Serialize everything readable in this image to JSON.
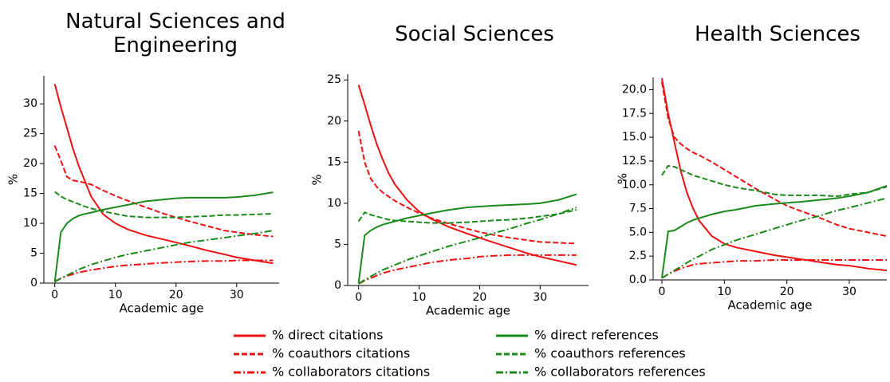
{
  "chart_data": [
    {
      "type": "line",
      "title": "Natural Sciences and Engineering",
      "xlabel": "Academic age",
      "ylabel": "%",
      "x": [
        0,
        1,
        2,
        3,
        4,
        5,
        6,
        8,
        10,
        12,
        15,
        18,
        20,
        22,
        25,
        28,
        30,
        33,
        36
      ],
      "xlim": [
        -1.8,
        37
      ],
      "xticks": [
        0,
        10,
        20,
        30
      ],
      "ylim": [
        0,
        34.7
      ],
      "yticks": [
        0,
        5,
        10,
        15,
        20,
        25,
        30
      ],
      "series": [
        {
          "name": "% direct citations",
          "color": "#ee1111",
          "dash": "solid",
          "values": [
            33.3,
            29.5,
            26,
            22.5,
            19.5,
            17,
            14.5,
            11.5,
            10,
            9,
            8,
            7.3,
            6.8,
            6.3,
            5.5,
            4.8,
            4.3,
            3.8,
            3.3
          ]
        },
        {
          "name": "% coauthors citations",
          "color": "#ee1111",
          "dash": "dashed",
          "values": [
            23,
            20.5,
            17.8,
            17.2,
            17,
            16.8,
            16.5,
            15.5,
            14.6,
            13.8,
            12.7,
            11.6,
            11,
            10.4,
            9.6,
            8.8,
            8.5,
            8.1,
            7.8
          ]
        },
        {
          "name": "% collaborators citations",
          "color": "#ee1111",
          "dash": "dashdot",
          "values": [
            0.3,
            0.8,
            1.2,
            1.5,
            1.8,
            2.0,
            2.2,
            2.5,
            2.8,
            3.0,
            3.2,
            3.4,
            3.5,
            3.6,
            3.7,
            3.7,
            3.8,
            3.8,
            3.8
          ]
        },
        {
          "name": "% direct references",
          "color": "#1a8a1a",
          "dash": "solid",
          "values": [
            0.2,
            8.5,
            10,
            10.8,
            11.3,
            11.6,
            11.8,
            12.3,
            12.7,
            13.1,
            13.7,
            14.0,
            14.2,
            14.3,
            14.3,
            14.3,
            14.4,
            14.7,
            15.2
          ]
        },
        {
          "name": "% coauthors references",
          "color": "#1a8a1a",
          "dash": "dashed",
          "values": [
            15.3,
            14.5,
            14,
            13.6,
            13.2,
            12.8,
            12.5,
            12,
            11.6,
            11.2,
            11,
            11,
            11,
            11.1,
            11.2,
            11.4,
            11.4,
            11.5,
            11.6
          ]
        },
        {
          "name": "% collaborators references",
          "color": "#1a8a1a",
          "dash": "dashdot",
          "values": [
            0.2,
            0.8,
            1.3,
            1.8,
            2.3,
            2.7,
            3.1,
            3.7,
            4.3,
            4.8,
            5.4,
            6.0,
            6.4,
            6.8,
            7.2,
            7.6,
            7.9,
            8.3,
            8.8
          ]
        }
      ]
    },
    {
      "type": "line",
      "title": "Social Sciences",
      "xlabel": "Academic age",
      "ylabel": "%",
      "x": [
        0,
        1,
        2,
        3,
        4,
        5,
        6,
        8,
        10,
        12,
        15,
        18,
        20,
        22,
        25,
        28,
        30,
        33,
        36
      ],
      "xlim": [
        -1.8,
        38
      ],
      "xticks": [
        0,
        10,
        20,
        30
      ],
      "ylim": [
        0,
        25.7
      ],
      "yticks": [
        0,
        5,
        10,
        15,
        20,
        25
      ],
      "series": [
        {
          "color": "#ee1111",
          "dash": "solid",
          "values": [
            24.4,
            22,
            19.5,
            17.2,
            15.3,
            13.6,
            12.3,
            10.4,
            9.0,
            8.1,
            7.1,
            6.3,
            5.8,
            5.3,
            4.6,
            3.9,
            3.5,
            3.0,
            2.5
          ]
        },
        {
          "color": "#ee1111",
          "dash": "dashed",
          "values": [
            18.8,
            15,
            13,
            12,
            11.3,
            10.8,
            10.3,
            9.5,
            8.8,
            8.2,
            7.5,
            6.9,
            6.5,
            6.2,
            5.8,
            5.5,
            5.3,
            5.2,
            5.1
          ]
        },
        {
          "color": "#ee1111",
          "dash": "dashdot",
          "values": [
            0.2,
            0.6,
            0.9,
            1.2,
            1.5,
            1.7,
            1.9,
            2.2,
            2.5,
            2.8,
            3.1,
            3.3,
            3.5,
            3.6,
            3.7,
            3.7,
            3.7,
            3.7,
            3.7
          ]
        },
        {
          "color": "#1a8a1a",
          "dash": "solid",
          "values": [
            0.3,
            6.1,
            6.7,
            7.1,
            7.4,
            7.6,
            7.8,
            8.2,
            8.5,
            8.8,
            9.2,
            9.5,
            9.6,
            9.7,
            9.8,
            9.9,
            10.0,
            10.4,
            11.1
          ]
        },
        {
          "color": "#1a8a1a",
          "dash": "dashed",
          "values": [
            7.8,
            8.9,
            8.6,
            8.4,
            8.2,
            8.0,
            7.9,
            7.8,
            7.7,
            7.6,
            7.6,
            7.7,
            7.8,
            7.9,
            8.0,
            8.2,
            8.4,
            8.7,
            9.2
          ]
        },
        {
          "color": "#1a8a1a",
          "dash": "dashdot",
          "values": [
            0.2,
            0.7,
            1.1,
            1.5,
            1.9,
            2.2,
            2.5,
            3.1,
            3.6,
            4.1,
            4.8,
            5.4,
            5.8,
            6.3,
            6.9,
            7.6,
            8.0,
            8.7,
            9.5
          ]
        }
      ]
    },
    {
      "type": "line",
      "title": "Health Sciences",
      "xlabel": "Academic age",
      "ylabel": "%",
      "x": [
        0,
        1,
        2,
        3,
        4,
        5,
        6,
        8,
        10,
        12,
        15,
        18,
        20,
        22,
        25,
        28,
        30,
        33,
        36
      ],
      "xlim": [
        -1.4,
        36
      ],
      "xticks": [
        0,
        10,
        20,
        30
      ],
      "ylim": [
        0,
        21.3
      ],
      "yticks": [
        {
          "value": 0,
          "label": "0.0"
        },
        {
          "value": 2.5,
          "label": "2.5"
        },
        {
          "value": 5,
          "label": "5.0"
        },
        {
          "value": 7.5,
          "label": "7.5"
        },
        {
          "value": 10,
          "label": "10.0"
        },
        {
          "value": 12.5,
          "label": "12.5"
        },
        {
          "value": 15,
          "label": "15.0"
        },
        {
          "value": 17.5,
          "label": "17.5"
        },
        {
          "value": 20,
          "label": "20.0"
        }
      ],
      "series": [
        {
          "color": "#ee1111",
          "dash": "solid",
          "values": [
            21.2,
            17.5,
            14.5,
            11.5,
            9.2,
            7.5,
            6.2,
            4.6,
            3.8,
            3.4,
            3.0,
            2.6,
            2.4,
            2.2,
            1.9,
            1.6,
            1.5,
            1.2,
            1.0
          ]
        },
        {
          "color": "#ee1111",
          "dash": "dashed",
          "values": [
            20.8,
            17,
            15,
            14.3,
            13.8,
            13.4,
            13.1,
            12.4,
            11.6,
            10.8,
            9.6,
            8.5,
            7.8,
            7.3,
            6.6,
            5.8,
            5.4,
            5.0,
            4.6
          ]
        },
        {
          "color": "#ee1111",
          "dash": "dashdot",
          "values": [
            0.2,
            0.6,
            0.9,
            1.2,
            1.4,
            1.6,
            1.7,
            1.8,
            1.9,
            2.0,
            2.0,
            2.1,
            2.1,
            2.1,
            2.1,
            2.1,
            2.1,
            2.1,
            2.1
          ]
        },
        {
          "color": "#1a8a1a",
          "dash": "solid",
          "values": [
            0.2,
            5.1,
            5.2,
            5.6,
            6.0,
            6.3,
            6.5,
            6.9,
            7.2,
            7.4,
            7.8,
            8.0,
            8.1,
            8.2,
            8.4,
            8.6,
            8.8,
            9.2,
            9.9
          ]
        },
        {
          "color": "#1a8a1a",
          "dash": "dashed",
          "values": [
            11,
            12,
            11.9,
            11.6,
            11.3,
            11,
            10.8,
            10.4,
            10.0,
            9.7,
            9.4,
            9.0,
            8.9,
            8.9,
            8.9,
            8.8,
            9.0,
            9.2,
            9.8
          ]
        },
        {
          "color": "#1a8a1a",
          "dash": "dashdot",
          "values": [
            0.2,
            0.6,
            1.0,
            1.4,
            1.8,
            2.2,
            2.5,
            3.2,
            3.7,
            4.2,
            4.8,
            5.4,
            5.8,
            6.2,
            6.7,
            7.3,
            7.6,
            8.1,
            8.6
          ]
        }
      ]
    }
  ]
}
